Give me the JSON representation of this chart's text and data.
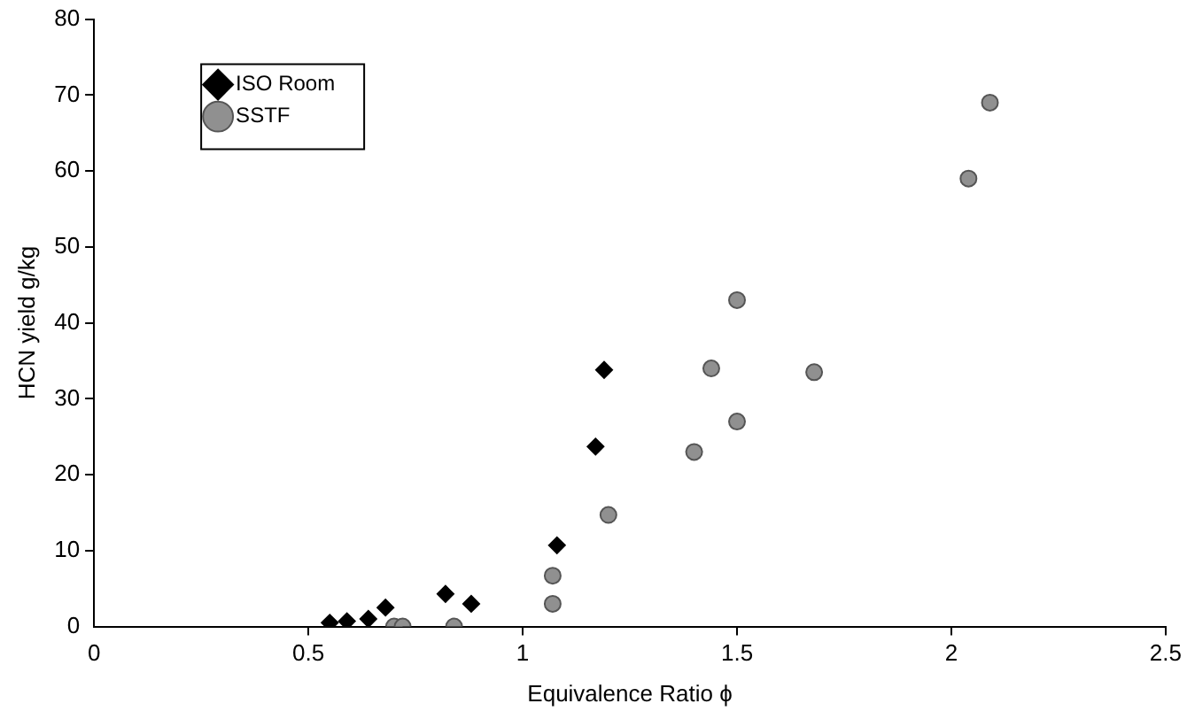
{
  "chart_data": {
    "type": "scatter",
    "xlabel": "Equivalence Ratio ϕ",
    "ylabel": "HCN yield g/kg",
    "xlim": [
      0,
      2.5
    ],
    "xticks": [
      0,
      0.5,
      1,
      1.5,
      2,
      2.5
    ],
    "ylim": [
      0,
      80
    ],
    "yticks": [
      0,
      10,
      20,
      30,
      40,
      50,
      60,
      70,
      80
    ],
    "grid": false,
    "legend": "top left",
    "series": [
      {
        "name": "ISO Room",
        "color": "#000000",
        "marker": "diamond",
        "x": [
          0.55,
          0.59,
          0.64,
          0.68,
          0.82,
          0.88,
          1.08,
          1.17,
          1.19
        ],
        "values": [
          0.5,
          0.7,
          1.0,
          2.5,
          4.3,
          3.0,
          10.7,
          23.7,
          33.8
        ]
      },
      {
        "name": "SSTF",
        "color": "#909090",
        "marker": "circle",
        "x": [
          0.7,
          0.72,
          0.84,
          1.07,
          1.07,
          1.2,
          1.4,
          1.44,
          1.5,
          1.5,
          1.68,
          2.04,
          2.09
        ],
        "values": [
          0,
          0,
          0,
          3.0,
          6.7,
          14.7,
          23,
          34,
          27,
          43,
          33.5,
          59,
          69
        ]
      }
    ]
  }
}
